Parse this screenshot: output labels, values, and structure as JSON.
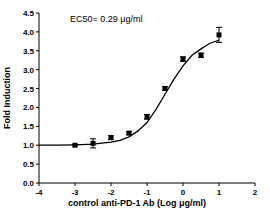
{
  "chart_data": {
    "type": "scatter",
    "annotation": "EC50= 0.29 μg/ml",
    "x_label": "control anti-PD-1 Ab (Log μg/ml)",
    "y_label": "Fold Induction",
    "xlim": [
      -4,
      2
    ],
    "xticks": [
      -4,
      -3,
      -2,
      -1,
      0,
      1,
      2
    ],
    "ylim": [
      0,
      4.5
    ],
    "yticks": [
      {
        "value": 0,
        "label": "0.0"
      },
      {
        "value": 0.5,
        "label": "0.5"
      },
      {
        "value": 1,
        "label": "1.0"
      },
      {
        "value": 1.5,
        "label": "1.5"
      },
      {
        "value": 2,
        "label": "2.0"
      },
      {
        "value": 2.5,
        "label": "2.5"
      },
      {
        "value": 3,
        "label": "3.0"
      },
      {
        "value": 3.5,
        "label": "3.5"
      },
      {
        "value": 4,
        "label": "4.0"
      },
      {
        "value": 4.5,
        "label": "4.5"
      }
    ],
    "grid": false,
    "series": [
      {
        "type": "scatter",
        "color": "#000000",
        "marker": "square",
        "x": [
          -3,
          -2.5,
          -2,
          -1.5,
          -1,
          -0.5,
          0,
          0.5,
          1
        ],
        "values": [
          1.0,
          1.05,
          1.2,
          1.32,
          1.75,
          2.5,
          3.28,
          3.38,
          3.92
        ],
        "errors": [
          0.02,
          0.12,
          0.05,
          0.04,
          0.06,
          0.05,
          0.06,
          0.06,
          0.2
        ]
      },
      {
        "type": "line",
        "color": "#000000",
        "line_style": "solid",
        "x": [
          -4,
          -3.5,
          -3,
          -2.5,
          -2,
          -1.75,
          -1.5,
          -1.25,
          -1,
          -0.75,
          -0.5,
          -0.25,
          0,
          0.25,
          0.5,
          0.75,
          1
        ],
        "values": [
          1.0,
          1.0,
          1.01,
          1.03,
          1.08,
          1.13,
          1.22,
          1.38,
          1.6,
          1.95,
          2.35,
          2.75,
          3.1,
          3.38,
          3.55,
          3.7,
          3.78
        ]
      }
    ]
  }
}
